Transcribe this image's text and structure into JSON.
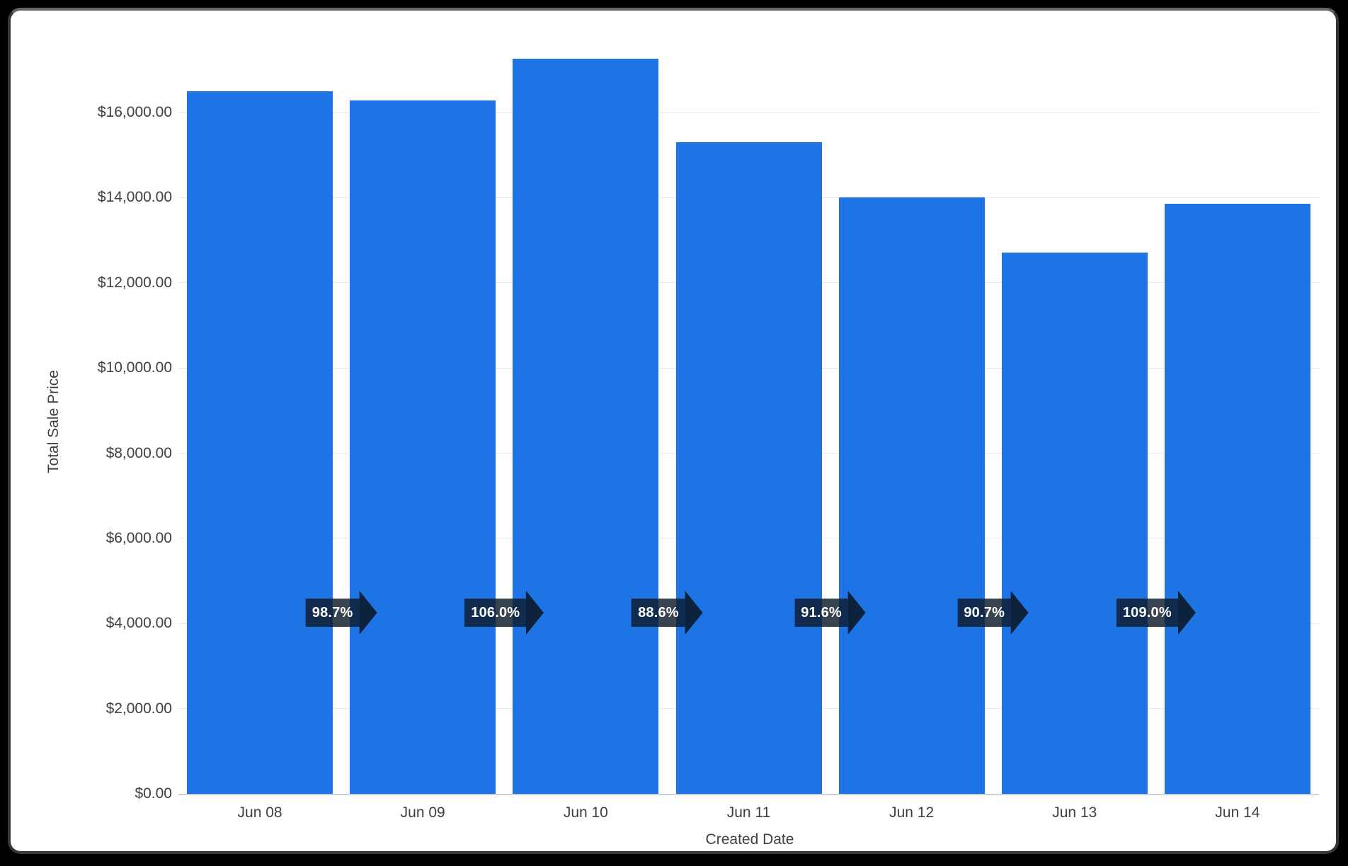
{
  "chart_data": {
    "type": "bar",
    "title": "",
    "xlabel": "Created Date",
    "ylabel": "Total Sale Price",
    "categories": [
      "Jun 08",
      "Jun 09",
      "Jun 10",
      "Jun 11",
      "Jun 12",
      "Jun 13",
      "Jun 14"
    ],
    "series": [
      {
        "name": "Total Sale Price",
        "values": [
          16500,
          16290,
          17260,
          15300,
          14010,
          12710,
          13850
        ]
      }
    ],
    "ylim": [
      0,
      17600
    ],
    "grid": "horizontal-only",
    "legend_position": "none",
    "y_ticks": [
      {
        "value": 0,
        "label": "$0.00"
      },
      {
        "value": 2000,
        "label": "$2,000.00"
      },
      {
        "value": 4000,
        "label": "$4,000.00"
      },
      {
        "value": 6000,
        "label": "$6,000.00"
      },
      {
        "value": 8000,
        "label": "$8,000.00"
      },
      {
        "value": 10000,
        "label": "$10,000.00"
      },
      {
        "value": 12000,
        "label": "$12,000.00"
      },
      {
        "value": 14000,
        "label": "$14,000.00"
      },
      {
        "value": 16000,
        "label": "$16,000.00"
      }
    ],
    "period_change_badges": {
      "shape": "right-arrow",
      "labels": [
        "98.7%",
        "106.0%",
        "88.6%",
        "91.6%",
        "90.7%",
        "109.0%"
      ],
      "bg_color": "rgba(13,27,43,0.82)",
      "arrow_color": "rgba(11,25,41,0.9)",
      "text_color": "#ffffff"
    },
    "colors": {
      "bar": "#1e74e5",
      "axis_text": "#3c4043",
      "gridline": "#e7e9ec",
      "baseline": "#ccd1da",
      "plot_background": "#ffffff",
      "frame_background": "#000000"
    }
  }
}
